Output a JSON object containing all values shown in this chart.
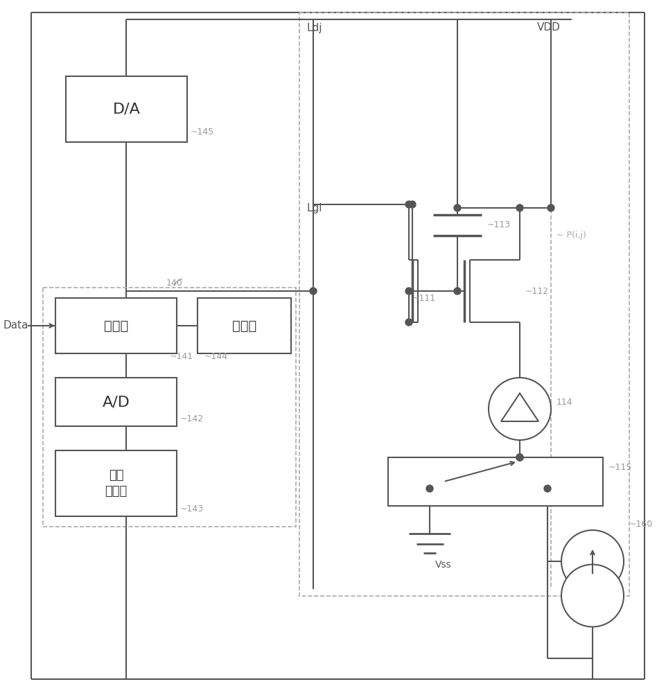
{
  "bg_color": "#ffffff",
  "lc": "#555555",
  "dc": "#aaaaaa",
  "tc": "#999999",
  "figsize": [
    9.61,
    10.0
  ],
  "dpi": 100,
  "labels": {
    "DA": "D/A",
    "processor": "处理器",
    "memory": "存储器",
    "AD": "A/D",
    "lowpass": "低通\n滤波器",
    "Ldj": "Ldj",
    "VDD": "VDD",
    "Lgi": "Lgi",
    "Pij": "~ P(i,j)",
    "Vss": "Vss",
    "Data": "Data",
    "n145": "~145",
    "n140": "140",
    "n141": "~141",
    "n144": "~144",
    "n142": "~142",
    "n143": "~143",
    "n111": "~111",
    "n112": "~112",
    "n113": "~113",
    "n114": "114",
    "n115": "~115",
    "n160": "~160"
  }
}
